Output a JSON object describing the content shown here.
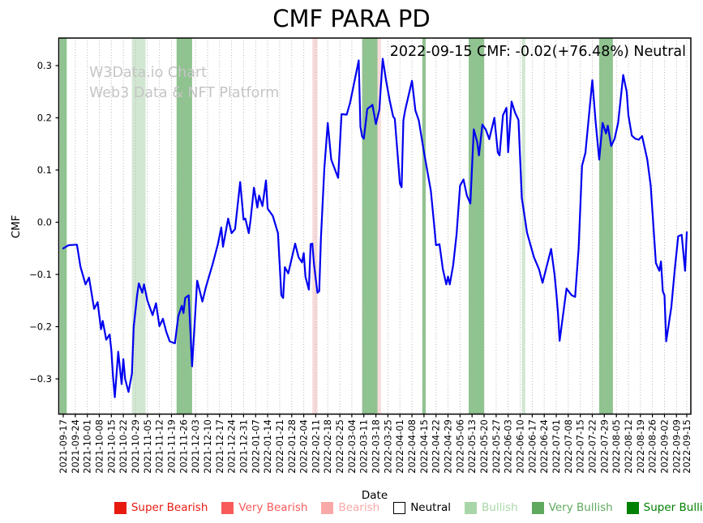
{
  "title": "CMF PARA PD",
  "annotation": "2022-09-15 CMF: -0.02(+76.48%) Neutral",
  "watermark": {
    "line1": "W3Data.io Chart",
    "line2": "Web3 Data & NFT Platform",
    "color": "#c5c5c5"
  },
  "chart_data": {
    "type": "line",
    "title": "CMF PARA PD",
    "xlabel": "Date",
    "ylabel": "CMF",
    "ylim": [
      -0.367,
      0.353
    ],
    "grid": "vertical-dotted",
    "grid_color": "#b3b3b3",
    "line_color": "#0000f0",
    "x_start_date": "2021-09-17",
    "x_tick_labels": [
      "2021-09-17",
      "2021-09-24",
      "2021-10-01",
      "2021-10-08",
      "2021-10-15",
      "2021-10-22",
      "2021-10-29",
      "2021-11-05",
      "2021-11-12",
      "2021-11-19",
      "2021-11-26",
      "2021-12-03",
      "2021-12-10",
      "2021-12-17",
      "2021-12-24",
      "2021-12-31",
      "2022-01-07",
      "2022-01-14",
      "2022-01-21",
      "2022-01-28",
      "2022-02-04",
      "2022-02-11",
      "2022-02-18",
      "2022-02-25",
      "2022-03-04",
      "2022-03-11",
      "2022-03-18",
      "2022-03-25",
      "2022-04-01",
      "2022-04-08",
      "2022-04-15",
      "2022-04-22",
      "2022-04-29",
      "2022-05-06",
      "2022-05-13",
      "2022-05-20",
      "2022-05-27",
      "2022-06-03",
      "2022-06-10",
      "2022-06-17",
      "2022-06-24",
      "2022-07-01",
      "2022-07-08",
      "2022-07-15",
      "2022-07-22",
      "2022-07-29",
      "2022-08-05",
      "2022-08-12",
      "2022-08-19",
      "2022-08-26",
      "2022-09-02",
      "2022-09-09",
      "2022-09-15"
    ],
    "y_ticks": [
      {
        "v": 0.3,
        "label": "0.3"
      },
      {
        "v": 0.2,
        "label": "0.2"
      },
      {
        "v": 0.1,
        "label": "0.1"
      },
      {
        "v": 0.0,
        "label": "0.0"
      },
      {
        "v": -0.1,
        "label": "−0.1"
      },
      {
        "v": -0.2,
        "label": "−0.2"
      },
      {
        "v": -0.3,
        "label": "−0.3"
      }
    ],
    "band_colors": {
      "bullish": "#d2e7d2",
      "very_bullish": "#8fc38f",
      "bearish": "#f8dada"
    },
    "bands": [
      {
        "from": "2021-09-15",
        "to": "2021-09-19",
        "category": "very_bullish"
      },
      {
        "from": "2021-10-27",
        "to": "2021-11-04",
        "category": "bullish"
      },
      {
        "from": "2021-11-22",
        "to": "2021-12-01",
        "category": "very_bullish"
      },
      {
        "from": "2022-02-09",
        "to": "2022-02-12",
        "category": "bearish"
      },
      {
        "from": "2022-03-10",
        "to": "2022-03-19",
        "category": "very_bullish"
      },
      {
        "from": "2022-03-19",
        "to": "2022-03-21",
        "category": "bearish"
      },
      {
        "from": "2022-04-14",
        "to": "2022-04-16",
        "category": "very_bullish"
      },
      {
        "from": "2022-05-11",
        "to": "2022-05-20",
        "category": "very_bullish"
      },
      {
        "from": "2022-06-11",
        "to": "2022-06-13",
        "category": "bullish"
      },
      {
        "from": "2022-07-26",
        "to": "2022-08-03",
        "category": "very_bullish"
      }
    ],
    "series": [
      {
        "name": "CMF",
        "points": [
          [
            "2021-09-17",
            -0.05
          ],
          [
            "2021-09-20",
            -0.044
          ],
          [
            "2021-09-25",
            -0.043
          ],
          [
            "2021-09-27",
            -0.085
          ],
          [
            "2021-09-30",
            -0.119
          ],
          [
            "2021-10-02",
            -0.106
          ],
          [
            "2021-10-05",
            -0.166
          ],
          [
            "2021-10-07",
            -0.153
          ],
          [
            "2021-10-09",
            -0.205
          ],
          [
            "2021-10-10",
            -0.189
          ],
          [
            "2021-10-12",
            -0.225
          ],
          [
            "2021-10-14",
            -0.215
          ],
          [
            "2021-10-15",
            -0.245
          ],
          [
            "2021-10-16",
            -0.296
          ],
          [
            "2021-10-17",
            -0.335
          ],
          [
            "2021-10-19",
            -0.248
          ],
          [
            "2021-10-21",
            -0.31
          ],
          [
            "2021-10-22",
            -0.262
          ],
          [
            "2021-10-23",
            -0.3
          ],
          [
            "2021-10-25",
            -0.325
          ],
          [
            "2021-10-27",
            -0.29
          ],
          [
            "2021-10-28",
            -0.2
          ],
          [
            "2021-10-30",
            -0.14
          ],
          [
            "2021-10-31",
            -0.117
          ],
          [
            "2021-11-02",
            -0.135
          ],
          [
            "2021-11-03",
            -0.119
          ],
          [
            "2021-11-05",
            -0.15
          ],
          [
            "2021-11-08",
            -0.178
          ],
          [
            "2021-11-10",
            -0.155
          ],
          [
            "2021-11-12",
            -0.199
          ],
          [
            "2021-11-14",
            -0.185
          ],
          [
            "2021-11-16",
            -0.21
          ],
          [
            "2021-11-18",
            -0.228
          ],
          [
            "2021-11-21",
            -0.232
          ],
          [
            "2021-11-23",
            -0.18
          ],
          [
            "2021-11-25",
            -0.16
          ],
          [
            "2021-11-26",
            -0.174
          ],
          [
            "2021-11-27",
            -0.145
          ],
          [
            "2021-11-29",
            -0.14
          ],
          [
            "2021-12-01",
            -0.276
          ],
          [
            "2021-12-04",
            -0.112
          ],
          [
            "2021-12-07",
            -0.152
          ],
          [
            "2021-12-09",
            -0.125
          ],
          [
            "2021-12-13",
            -0.08
          ],
          [
            "2021-12-16",
            -0.042
          ],
          [
            "2021-12-18",
            -0.01
          ],
          [
            "2021-12-19",
            -0.047
          ],
          [
            "2021-12-22",
            0.007
          ],
          [
            "2021-12-24",
            -0.021
          ],
          [
            "2021-12-26",
            -0.013
          ],
          [
            "2021-12-29",
            0.077
          ],
          [
            "2021-12-31",
            0.005
          ],
          [
            "2022-01-01",
            0.007
          ],
          [
            "2022-01-03",
            -0.021
          ],
          [
            "2022-01-04",
            0.003
          ],
          [
            "2022-01-06",
            0.066
          ],
          [
            "2022-01-08",
            0.028
          ],
          [
            "2022-01-09",
            0.051
          ],
          [
            "2022-01-11",
            0.031
          ],
          [
            "2022-01-13",
            0.08
          ],
          [
            "2022-01-14",
            0.026
          ],
          [
            "2022-01-17",
            0.012
          ],
          [
            "2022-01-20",
            -0.021
          ],
          [
            "2022-01-22",
            -0.14
          ],
          [
            "2022-01-23",
            -0.145
          ],
          [
            "2022-01-24",
            -0.086
          ],
          [
            "2022-01-26",
            -0.098
          ],
          [
            "2022-01-29",
            -0.055
          ],
          [
            "2022-01-30",
            -0.041
          ],
          [
            "2022-02-01",
            -0.067
          ],
          [
            "2022-02-03",
            -0.077
          ],
          [
            "2022-02-04",
            -0.059
          ],
          [
            "2022-02-05",
            -0.104
          ],
          [
            "2022-02-07",
            -0.129
          ],
          [
            "2022-02-08",
            -0.042
          ],
          [
            "2022-02-09",
            -0.041
          ],
          [
            "2022-02-10",
            -0.081
          ],
          [
            "2022-02-12",
            -0.135
          ],
          [
            "2022-02-13",
            -0.132
          ],
          [
            "2022-02-14",
            -0.031
          ],
          [
            "2022-02-16",
            0.103
          ],
          [
            "2022-02-18",
            0.19
          ],
          [
            "2022-02-20",
            0.12
          ],
          [
            "2022-02-24",
            0.085
          ],
          [
            "2022-02-26",
            0.207
          ],
          [
            "2022-03-01",
            0.206
          ],
          [
            "2022-03-03",
            0.229
          ],
          [
            "2022-03-08",
            0.31
          ],
          [
            "2022-03-09",
            0.183
          ],
          [
            "2022-03-10",
            0.164
          ],
          [
            "2022-03-11",
            0.16
          ],
          [
            "2022-03-13",
            0.217
          ],
          [
            "2022-03-15",
            0.222
          ],
          [
            "2022-03-16",
            0.225
          ],
          [
            "2022-03-18",
            0.188
          ],
          [
            "2022-03-20",
            0.215
          ],
          [
            "2022-03-22",
            0.313
          ],
          [
            "2022-03-24",
            0.27
          ],
          [
            "2022-03-26",
            0.234
          ],
          [
            "2022-03-28",
            0.203
          ],
          [
            "2022-03-29",
            0.198
          ],
          [
            "2022-04-01",
            0.074
          ],
          [
            "2022-04-02",
            0.067
          ],
          [
            "2022-04-03",
            0.195
          ],
          [
            "2022-04-04",
            0.214
          ],
          [
            "2022-04-08",
            0.271
          ],
          [
            "2022-04-10",
            0.214
          ],
          [
            "2022-04-12",
            0.195
          ],
          [
            "2022-04-15",
            0.134
          ],
          [
            "2022-04-19",
            0.06
          ],
          [
            "2022-04-21",
            -0.008
          ],
          [
            "2022-04-22",
            -0.044
          ],
          [
            "2022-04-24",
            -0.042
          ],
          [
            "2022-04-26",
            -0.09
          ],
          [
            "2022-04-28",
            -0.119
          ],
          [
            "2022-04-29",
            -0.104
          ],
          [
            "2022-04-30",
            -0.119
          ],
          [
            "2022-05-02",
            -0.082
          ],
          [
            "2022-05-04",
            -0.023
          ],
          [
            "2022-05-06",
            0.07
          ],
          [
            "2022-05-08",
            0.082
          ],
          [
            "2022-05-10",
            0.051
          ],
          [
            "2022-05-12",
            0.036
          ],
          [
            "2022-05-14",
            0.178
          ],
          [
            "2022-05-16",
            0.153
          ],
          [
            "2022-05-17",
            0.128
          ],
          [
            "2022-05-19",
            0.187
          ],
          [
            "2022-05-21",
            0.177
          ],
          [
            "2022-05-23",
            0.159
          ],
          [
            "2022-05-26",
            0.2
          ],
          [
            "2022-05-28",
            0.133
          ],
          [
            "2022-05-29",
            0.128
          ],
          [
            "2022-05-31",
            0.205
          ],
          [
            "2022-06-02",
            0.219
          ],
          [
            "2022-06-03",
            0.134
          ],
          [
            "2022-06-05",
            0.231
          ],
          [
            "2022-06-07",
            0.21
          ],
          [
            "2022-06-09",
            0.196
          ],
          [
            "2022-06-11",
            0.046
          ],
          [
            "2022-06-14",
            -0.02
          ],
          [
            "2022-06-18",
            -0.067
          ],
          [
            "2022-06-21",
            -0.09
          ],
          [
            "2022-06-23",
            -0.116
          ],
          [
            "2022-06-28",
            -0.051
          ],
          [
            "2022-06-30",
            -0.1
          ],
          [
            "2022-07-01",
            -0.134
          ],
          [
            "2022-07-02",
            -0.173
          ],
          [
            "2022-07-03",
            -0.227
          ],
          [
            "2022-07-07",
            -0.127
          ],
          [
            "2022-07-10",
            -0.14
          ],
          [
            "2022-07-12",
            -0.143
          ],
          [
            "2022-07-14",
            -0.05
          ],
          [
            "2022-07-16",
            0.108
          ],
          [
            "2022-07-18",
            0.133
          ],
          [
            "2022-07-22",
            0.272
          ],
          [
            "2022-07-24",
            0.19
          ],
          [
            "2022-07-26",
            0.12
          ],
          [
            "2022-07-28",
            0.19
          ],
          [
            "2022-07-30",
            0.17
          ],
          [
            "2022-07-31",
            0.185
          ],
          [
            "2022-08-02",
            0.146
          ],
          [
            "2022-08-04",
            0.16
          ],
          [
            "2022-08-06",
            0.19
          ],
          [
            "2022-08-09",
            0.282
          ],
          [
            "2022-08-11",
            0.25
          ],
          [
            "2022-08-12",
            0.205
          ],
          [
            "2022-08-14",
            0.166
          ],
          [
            "2022-08-16",
            0.16
          ],
          [
            "2022-08-18",
            0.158
          ],
          [
            "2022-08-20",
            0.165
          ],
          [
            "2022-08-23",
            0.12
          ],
          [
            "2022-08-25",
            0.07
          ],
          [
            "2022-08-28",
            -0.078
          ],
          [
            "2022-08-30",
            -0.093
          ],
          [
            "2022-08-31",
            -0.075
          ],
          [
            "2022-09-01",
            -0.132
          ],
          [
            "2022-09-02",
            -0.14
          ],
          [
            "2022-09-03",
            -0.228
          ],
          [
            "2022-09-06",
            -0.163
          ],
          [
            "2022-09-08",
            -0.09
          ],
          [
            "2022-09-10",
            -0.027
          ],
          [
            "2022-09-12",
            -0.024
          ],
          [
            "2022-09-14",
            -0.093
          ],
          [
            "2022-09-15",
            -0.019
          ]
        ]
      }
    ]
  },
  "legend": {
    "items": [
      {
        "label": "Super Bearish",
        "color": "#e71a10"
      },
      {
        "label": "Very Bearish",
        "color": "#f85a5a"
      },
      {
        "label": "Bearish",
        "color": "#f9a8a8"
      },
      {
        "label": "Neutral",
        "color": "#ffffff",
        "text_color": "#000000",
        "border": "#000000"
      },
      {
        "label": "Bullish",
        "color": "#a9d6a9"
      },
      {
        "label": "Very Bullish",
        "color": "#5ea95e"
      },
      {
        "label": "Super Bullish",
        "color": "#008000"
      }
    ]
  }
}
